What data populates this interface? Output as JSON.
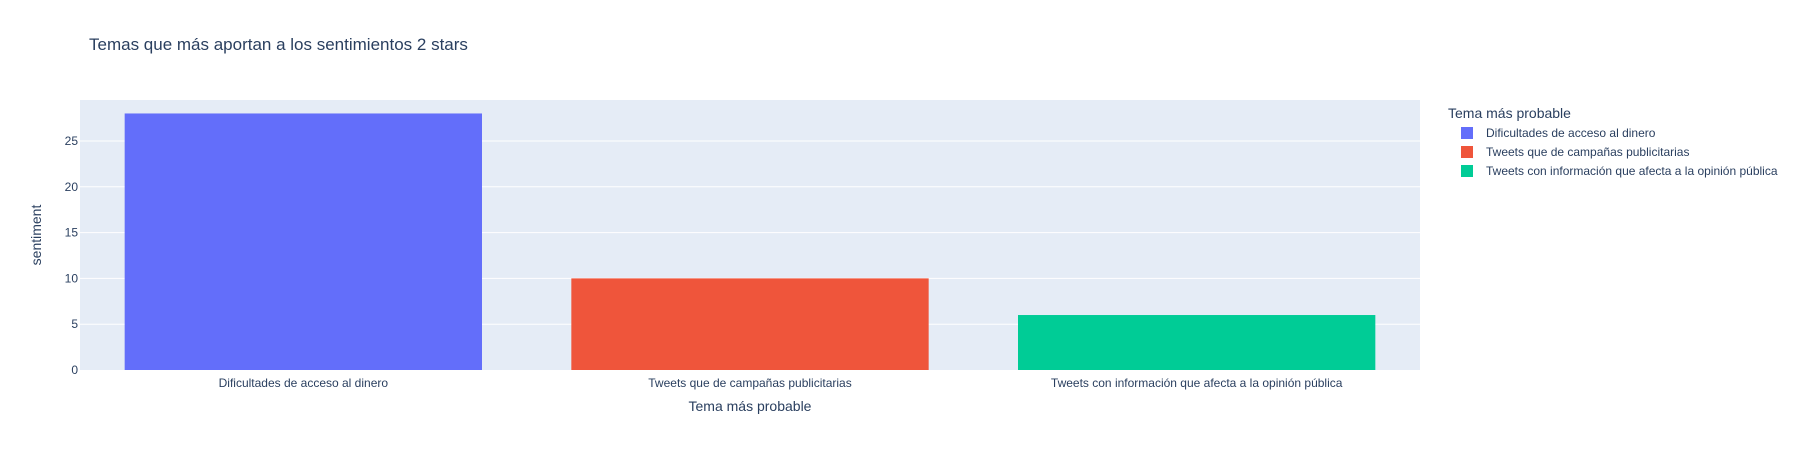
{
  "chart_data": {
    "type": "bar",
    "title": "Temas que más aportan a los sentimientos 2 stars",
    "xlabel": "Tema más probable",
    "ylabel": "sentiment",
    "categories": [
      "Dificultades de acceso al dinero",
      "Tweets que de campañas publicitarias",
      "Tweets con información que afecta a la opinión pública"
    ],
    "values": [
      28,
      10,
      6
    ],
    "colors": [
      "#636efa",
      "#ef553b",
      "#00cc96"
    ],
    "ylim": [
      0,
      29.47
    ],
    "yticks": [
      0,
      5,
      10,
      15,
      20,
      25
    ],
    "grid": true,
    "plot_background": "#e5ecf6",
    "legend": {
      "title": "Tema más probable",
      "placement": "top-right",
      "entries": [
        "Dificultades de acceso al dinero",
        "Tweets que de campañas publicitarias",
        "Tweets con información que afecta a la opinión pública"
      ]
    }
  }
}
